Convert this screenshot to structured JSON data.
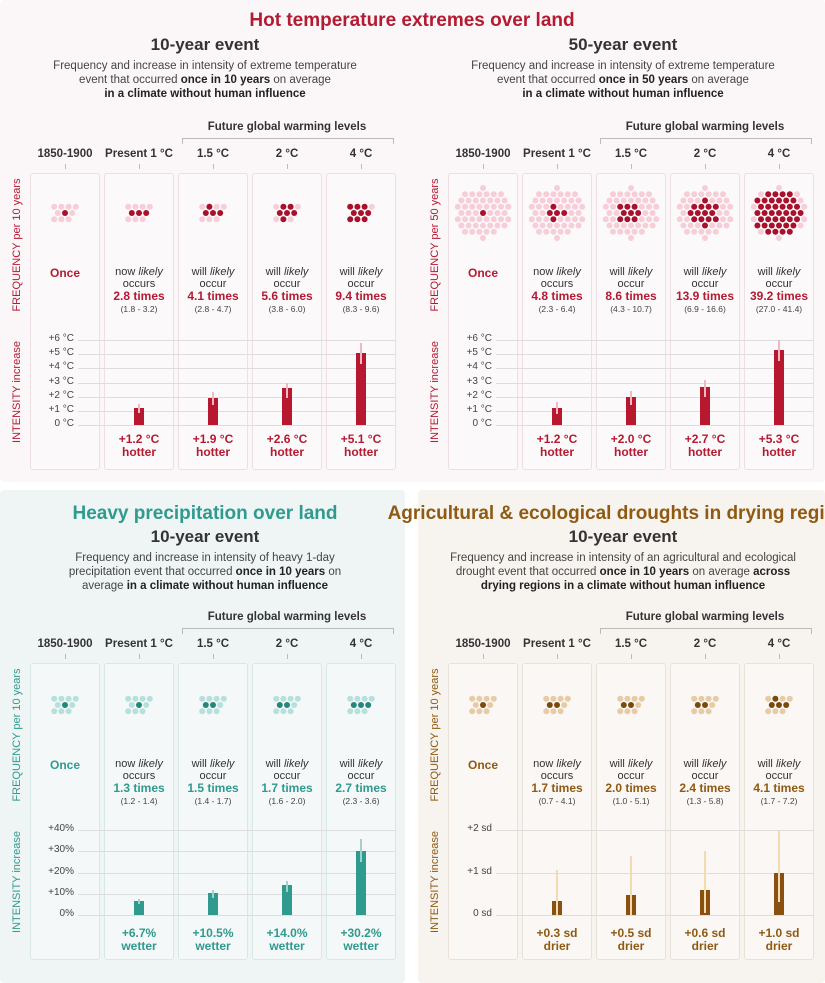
{
  "main_title": "Hot temperature extremes over land",
  "chart_data": [
    {
      "type": "bar",
      "panel": "hot-10",
      "title": "",
      "event": "10-year event",
      "desc": [
        [
          [
            "Frequency and increase in intensity of extreme temperature",
            0
          ]
        ],
        [
          [
            "event that occurred ",
            0
          ],
          [
            "once in 10 years",
            1
          ],
          [
            " on average",
            0
          ]
        ],
        [
          [
            "in a climate without human influence",
            1
          ]
        ]
      ],
      "future_label": "Future global warming levels",
      "columns": [
        "1850-1900",
        "Present 1 °C",
        "1.5 °C",
        "2 °C",
        "4 °C"
      ],
      "freq_axis": [
        "FREQUENCY",
        " per 10 years"
      ],
      "int_axis": [
        "INTENSITY",
        " increase"
      ],
      "once": "Once",
      "total_dots": 10,
      "ylim": [
        0,
        6
      ],
      "yticks": [
        "0 °C",
        "+1 °C",
        "+2 °C",
        "+3 °C",
        "+4 °C",
        "+5 °C",
        "+6 °C"
      ],
      "colors": {
        "text": "#b41a32",
        "dark": "#a8102c",
        "light": "#f7cdd8",
        "bar": "#b8182f",
        "whisker": "#f0b8c2",
        "bg": "#fbf6f7",
        "box": "#efdfe3"
      },
      "cells": [
        {
          "l1": [
            "now ",
            "likely"
          ],
          "l2": "occurs",
          "times": "2.8 times",
          "range": "(1.8 - 3.2)",
          "label": "+1.2 °C",
          "word": "hotter",
          "value": 1.2,
          "low": 0.85,
          "high": 1.5,
          "count": 2.8
        },
        {
          "l1": [
            "will ",
            "likely"
          ],
          "l2": "occur",
          "times": "4.1 times",
          "range": "(2.8 - 4.7)",
          "label": "+1.9 °C",
          "word": "hotter",
          "value": 1.9,
          "low": 1.4,
          "high": 2.3,
          "count": 4.1
        },
        {
          "l1": [
            "will ",
            "likely"
          ],
          "l2": "occur",
          "times": "5.6 times",
          "range": "(3.8 - 6.0)",
          "label": "+2.6 °C",
          "word": "hotter",
          "value": 2.6,
          "low": 1.9,
          "high": 3.0,
          "count": 5.6
        },
        {
          "l1": [
            "will ",
            "likely"
          ],
          "l2": "occur",
          "times": "9.4 times",
          "range": "(8.3 - 9.6)",
          "label": "+5.1 °C",
          "word": "hotter",
          "value": 5.1,
          "low": 4.3,
          "high": 5.8,
          "count": 9.4
        }
      ]
    },
    {
      "type": "bar",
      "panel": "hot-50",
      "title": "",
      "event": "50-year event",
      "desc": [
        [
          [
            "Frequency and increase in intensity of extreme temperature",
            0
          ]
        ],
        [
          [
            "event that occurred ",
            0
          ],
          [
            "once in 50 years",
            1
          ],
          [
            " on average",
            0
          ]
        ],
        [
          [
            "in a climate without human influence",
            1
          ]
        ]
      ],
      "future_label": "Future global warming levels",
      "columns": [
        "1850-1900",
        "Present 1 °C",
        "1.5 °C",
        "2 °C",
        "4 °C"
      ],
      "freq_axis": [
        "FREQUENCY",
        " per 50 years"
      ],
      "int_axis": [
        "INTENSITY",
        " increase"
      ],
      "once": "Once",
      "total_dots": 50,
      "ylim": [
        0,
        6
      ],
      "yticks": [
        "0 °C",
        "+1 °C",
        "+2 °C",
        "+3 °C",
        "+4 °C",
        "+5 °C",
        "+6 °C"
      ],
      "colors": {
        "text": "#b41a32",
        "dark": "#a8102c",
        "light": "#f7cdd8",
        "bar": "#b8182f",
        "whisker": "#f0b8c2",
        "bg": "#fbf6f7",
        "box": "#efdfe3"
      },
      "cells": [
        {
          "l1": [
            "now ",
            "likely"
          ],
          "l2": "occurs",
          "times": "4.8 times",
          "range": "(2.3 - 6.4)",
          "label": "+1.2 °C",
          "word": "hotter",
          "value": 1.2,
          "low": 0.8,
          "high": 1.6,
          "count": 4.8
        },
        {
          "l1": [
            "will ",
            "likely"
          ],
          "l2": "occur",
          "times": "8.6 times",
          "range": "(4.3 - 10.7)",
          "label": "+2.0 °C",
          "word": "hotter",
          "value": 2.0,
          "low": 1.4,
          "high": 2.4,
          "count": 8.6
        },
        {
          "l1": [
            "will ",
            "likely"
          ],
          "l2": "occur",
          "times": "13.9 times",
          "range": "(6.9 - 16.6)",
          "label": "+2.7 °C",
          "word": "hotter",
          "value": 2.7,
          "low": 2.0,
          "high": 3.2,
          "count": 13.9
        },
        {
          "l1": [
            "will ",
            "likely"
          ],
          "l2": "occur",
          "times": "39.2 times",
          "range": "(27.0 - 41.4)",
          "label": "+5.3 °C",
          "word": "hotter",
          "value": 5.3,
          "low": 4.5,
          "high": 6.0,
          "count": 39.2
        }
      ]
    },
    {
      "type": "bar",
      "panel": "precip-10",
      "title": "Heavy precipitation over land",
      "event": "10-year event",
      "desc": [
        [
          [
            "Frequency and increase in intensity of heavy 1-day",
            0
          ]
        ],
        [
          [
            "precipitation event that occurred ",
            0
          ],
          [
            "once in 10 years",
            1
          ],
          [
            " on",
            0
          ]
        ],
        [
          [
            "average ",
            0
          ],
          [
            "in a climate without human influence",
            1
          ]
        ]
      ],
      "future_label": "Future global warming levels",
      "columns": [
        "1850-1900",
        "Present 1 °C",
        "1.5 °C",
        "2 °C",
        "4 °C"
      ],
      "freq_axis": [
        "FREQUENCY",
        " per 10 years"
      ],
      "int_axis": [
        "INTENSITY",
        " increase"
      ],
      "once": "Once",
      "total_dots": 10,
      "ylim": [
        0,
        40
      ],
      "yticks": [
        "0%",
        "+10%",
        "+20%",
        "+30%",
        "+40%"
      ],
      "colors": {
        "text": "#2f9a8e",
        "dark": "#24877c",
        "light": "#b6e0dc",
        "bar": "#2f9a8e",
        "whisker": "#9fd3cc",
        "bg": "#eef5f4",
        "box": "#d9e8e6"
      },
      "cells": [
        {
          "l1": [
            "now ",
            "likely"
          ],
          "l2": "occurs",
          "times": "1.3 times",
          "range": "(1.2 - 1.4)",
          "label": "+6.7%",
          "word": "wetter",
          "value": 6.7,
          "low": 5.0,
          "high": 7.5,
          "count": 1.3
        },
        {
          "l1": [
            "will ",
            "likely"
          ],
          "l2": "occur",
          "times": "1.5 times",
          "range": "(1.4 - 1.7)",
          "label": "+10.5%",
          "word": "wetter",
          "value": 10.5,
          "low": 8.0,
          "high": 12.0,
          "count": 1.5
        },
        {
          "l1": [
            "will ",
            "likely"
          ],
          "l2": "occur",
          "times": "1.7 times",
          "range": "(1.6 - 2.0)",
          "label": "+14.0%",
          "word": "wetter",
          "value": 14.0,
          "low": 11.0,
          "high": 16.0,
          "count": 1.7
        },
        {
          "l1": [
            "will ",
            "likely"
          ],
          "l2": "occur",
          "times": "2.7 times",
          "range": "(2.3 - 3.6)",
          "label": "+30.2%",
          "word": "wetter",
          "value": 30.2,
          "low": 25.0,
          "high": 36.0,
          "count": 2.7
        }
      ]
    },
    {
      "type": "bar",
      "panel": "drought-10",
      "title": "Agricultural & ecological droughts in drying regions",
      "event": "10-year event",
      "desc": [
        [
          [
            "Frequency and increase in intensity of an agricultural and ecological",
            0
          ]
        ],
        [
          [
            "drought event that occurred ",
            0
          ],
          [
            "once in 10 years",
            1
          ],
          [
            " on average ",
            0
          ],
          [
            "across",
            1
          ]
        ],
        [
          [
            "drying regions in a climate without human influence",
            1
          ]
        ]
      ],
      "future_label": "Future global warming levels",
      "columns": [
        "1850-1900",
        "Present 1 °C",
        "1.5 °C",
        "2 °C",
        "4 °C"
      ],
      "freq_axis": [
        "FREQUENCY",
        " per 10 years"
      ],
      "int_axis": [
        "INTENSITY",
        " increase"
      ],
      "once": "Once",
      "total_dots": 10,
      "ylim": [
        0,
        2
      ],
      "yticks": [
        "0 sd",
        "+1 sd",
        "+2 sd"
      ],
      "colors": {
        "text": "#8f5a12",
        "dark": "#7a4a0c",
        "light": "#e6cba6",
        "bar": "#8a5010",
        "whisker": "#f1dbb0",
        "bg": "#f7f3ee",
        "box": "#eae2d8"
      },
      "cells": [
        {
          "l1": [
            "now ",
            "likely"
          ],
          "l2": "occurs",
          "times": "1.7 times",
          "range": "(0.7 - 4.1)",
          "label": "+0.3 sd",
          "word": "drier",
          "value": 0.33,
          "low": 0.0,
          "high": 1.05,
          "count": 1.7
        },
        {
          "l1": [
            "will ",
            "likely"
          ],
          "l2": "occur",
          "times": "2.0 times",
          "range": "(1.0 - 5.1)",
          "label": "+0.5 sd",
          "word": "drier",
          "value": 0.46,
          "low": 0.0,
          "high": 1.4,
          "count": 2.0
        },
        {
          "l1": [
            "will ",
            "likely"
          ],
          "l2": "occur",
          "times": "2.4 times",
          "range": "(1.3 - 5.8)",
          "label": "+0.6 sd",
          "word": "drier",
          "value": 0.58,
          "low": 0.05,
          "high": 1.5,
          "count": 2.4
        },
        {
          "l1": [
            "will ",
            "likely"
          ],
          "l2": "occur",
          "times": "4.1 times",
          "range": "(1.7 - 7.2)",
          "label": "+1.0 sd",
          "word": "drier",
          "value": 1.0,
          "low": 0.3,
          "high": 2.0,
          "count": 4.1
        }
      ]
    }
  ]
}
